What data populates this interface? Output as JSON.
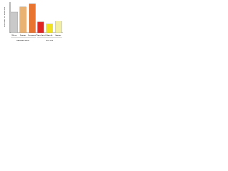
{
  "chart_data": {
    "type": "bar",
    "ylabel": "Number of species",
    "categories": [
      "Stony",
      "Barren",
      "Forested",
      "Grassland",
      "Marsh",
      "Desert"
    ],
    "values": [
      69,
      86,
      98,
      36,
      31,
      40
    ],
    "colors": [
      "#c9c9c9",
      "#e9b172",
      "#e8742f",
      "#e02424",
      "#f1e221",
      "#f3f0a6"
    ],
    "groups": [
      {
        "name": "MOUNTAINS",
        "count": 3
      },
      {
        "name": "PLAINS",
        "count": 3
      }
    ],
    "ylim": [
      0,
      100
    ]
  }
}
